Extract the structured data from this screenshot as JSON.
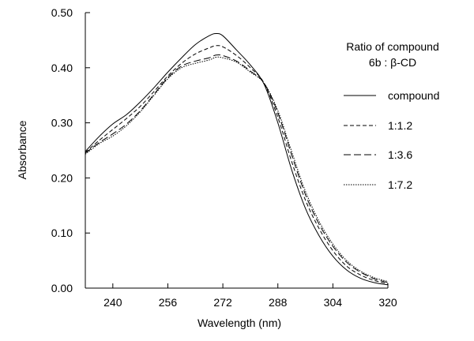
{
  "chart_data": {
    "type": "line",
    "title": "",
    "xlabel": "Wavelength (nm)",
    "ylabel": "Absorbance",
    "xlim": [
      232,
      320
    ],
    "ylim": [
      0.0,
      0.5
    ],
    "x_ticks": [
      240,
      256,
      272,
      288,
      304,
      320
    ],
    "x_tick_labels": [
      "240",
      "256",
      "272",
      "288",
      "304",
      "320"
    ],
    "y_ticks": [
      0.0,
      0.1,
      0.2,
      0.3,
      0.4,
      0.5
    ],
    "y_tick_labels": [
      "0.00",
      "0.10",
      "0.20",
      "0.30",
      "0.40",
      "0.50"
    ],
    "grid": false,
    "legend": {
      "title_line1": "Ratio of compound",
      "title_line2": "6b : β-CD",
      "placement": "right"
    },
    "x": [
      232,
      236,
      240,
      244,
      248,
      252,
      256,
      260,
      264,
      268,
      270,
      272,
      276,
      280,
      284,
      288,
      292,
      296,
      300,
      304,
      308,
      312,
      316,
      320
    ],
    "series": [
      {
        "name": "compound",
        "dash": "solid",
        "values": [
          0.248,
          0.275,
          0.298,
          0.315,
          0.338,
          0.364,
          0.392,
          0.418,
          0.442,
          0.458,
          0.462,
          0.458,
          0.432,
          0.405,
          0.37,
          0.3,
          0.215,
          0.145,
          0.095,
          0.058,
          0.033,
          0.018,
          0.01,
          0.006
        ]
      },
      {
        "name": "1:1.2",
        "dash": "5,3",
        "values": [
          0.246,
          0.268,
          0.288,
          0.308,
          0.33,
          0.357,
          0.385,
          0.408,
          0.425,
          0.436,
          0.44,
          0.438,
          0.422,
          0.4,
          0.372,
          0.31,
          0.23,
          0.16,
          0.108,
          0.068,
          0.04,
          0.024,
          0.014,
          0.008
        ]
      },
      {
        "name": "1:3.6",
        "dash": "9,4",
        "values": [
          0.245,
          0.264,
          0.28,
          0.298,
          0.322,
          0.352,
          0.382,
          0.403,
          0.412,
          0.418,
          0.423,
          0.422,
          0.412,
          0.394,
          0.372,
          0.318,
          0.242,
          0.17,
          0.116,
          0.076,
          0.047,
          0.029,
          0.017,
          0.01
        ]
      },
      {
        "name": "1:7.2",
        "dash": "1.5,1.5",
        "values": [
          0.243,
          0.262,
          0.276,
          0.295,
          0.32,
          0.35,
          0.38,
          0.4,
          0.408,
          0.414,
          0.419,
          0.418,
          0.41,
          0.392,
          0.372,
          0.322,
          0.248,
          0.176,
          0.121,
          0.08,
          0.05,
          0.031,
          0.019,
          0.012
        ]
      }
    ]
  }
}
